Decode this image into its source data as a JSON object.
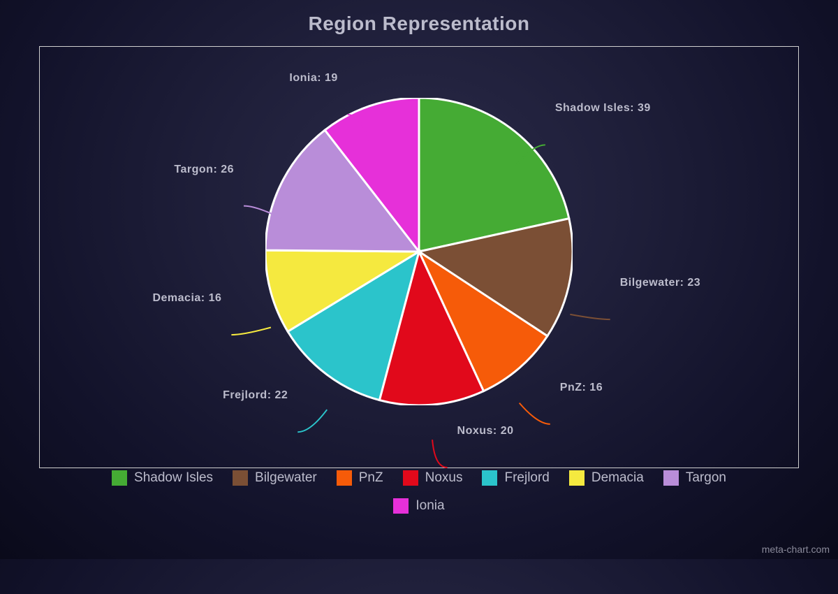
{
  "title": "Region Representation",
  "watermark": "meta-chart.com",
  "chart": {
    "type": "pie",
    "radius": 220,
    "stroke_color": "#ffffff",
    "stroke_width": 3,
    "background": "transparent",
    "label_color": "#bcbccc",
    "label_fontsize": 16,
    "title_fontsize": 28,
    "legend_fontsize": 19,
    "slices": [
      {
        "label": "Shadow Isles",
        "value": 39,
        "color": "#45ab34",
        "label_text": "Shadow Isles: 39"
      },
      {
        "label": "Bilgewater",
        "value": 23,
        "color": "#7b4f35",
        "label_text": "Bilgewater: 23"
      },
      {
        "label": "PnZ",
        "value": 16,
        "color": "#f65b09",
        "label_text": "PnZ: 16"
      },
      {
        "label": "Noxus",
        "value": 20,
        "color": "#e1091b",
        "label_text": "Noxus: 20"
      },
      {
        "label": "Frejlord",
        "value": 22,
        "color": "#2bc4cb",
        "label_text": "Frejlord: 22"
      },
      {
        "label": "Demacia",
        "value": 16,
        "color": "#f5e93f",
        "label_text": "Demacia: 16"
      },
      {
        "label": "Targon",
        "value": 26,
        "color": "#b98dd9",
        "label_text": "Targon: 26"
      },
      {
        "label": "Ionia",
        "value": 19,
        "color": "#e630d9",
        "label_text": "Ionia: 19"
      }
    ]
  }
}
